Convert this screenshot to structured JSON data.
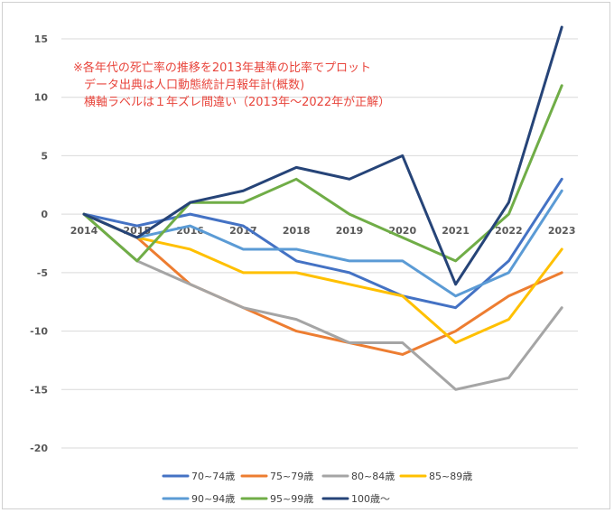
{
  "chart_data": {
    "type": "line",
    "title": "",
    "xlabel": "",
    "ylabel": "",
    "ylim": [
      -20,
      15
    ],
    "y_ticks": [
      15,
      10,
      5,
      0,
      -5,
      -10,
      -15,
      -20
    ],
    "categories": [
      "2014",
      "2015",
      "2016",
      "2017",
      "2018",
      "2019",
      "2020",
      "2021",
      "2022",
      "2023"
    ],
    "annotation": [
      "※各年代の死亡率の推移を2013年基準の比率でプロット",
      "データ出典は人口動態統計月報年計(概数)",
      "横軸ラベルは１年ズレ間違い（2013年～2022年が正解）"
    ],
    "legend_position": "bottom",
    "series": [
      {
        "name": "70~74歳",
        "color": "#4472c4",
        "values": [
          0,
          -1,
          0,
          -1,
          -4,
          -5,
          -7,
          -8,
          -4,
          3
        ]
      },
      {
        "name": "75~79歳",
        "color": "#ed7d31",
        "values": [
          0,
          -2,
          -6,
          -8,
          -10,
          -11,
          -12,
          -10,
          -7,
          -5
        ]
      },
      {
        "name": "80~84歳",
        "color": "#a5a5a5",
        "values": [
          0,
          -4,
          -6,
          -8,
          -9,
          -11,
          -11,
          -15,
          -14,
          -8
        ]
      },
      {
        "name": "85~89歳",
        "color": "#ffc000",
        "values": [
          0,
          -2,
          -3,
          -5,
          -5,
          -6,
          -7,
          -11,
          -9,
          -3
        ]
      },
      {
        "name": "90~94歳",
        "color": "#5b9bd5",
        "values": [
          0,
          -2,
          -1,
          -3,
          -3,
          -4,
          -4,
          -7,
          -5,
          2
        ]
      },
      {
        "name": "95~99歳",
        "color": "#70ad47",
        "values": [
          0,
          -4,
          1,
          1,
          3,
          0,
          -2,
          -4,
          0,
          11
        ]
      },
      {
        "name": "100歳～",
        "color": "#264478",
        "values": [
          0,
          -2,
          1,
          2,
          4,
          3,
          5,
          -6,
          1,
          16
        ]
      }
    ]
  }
}
